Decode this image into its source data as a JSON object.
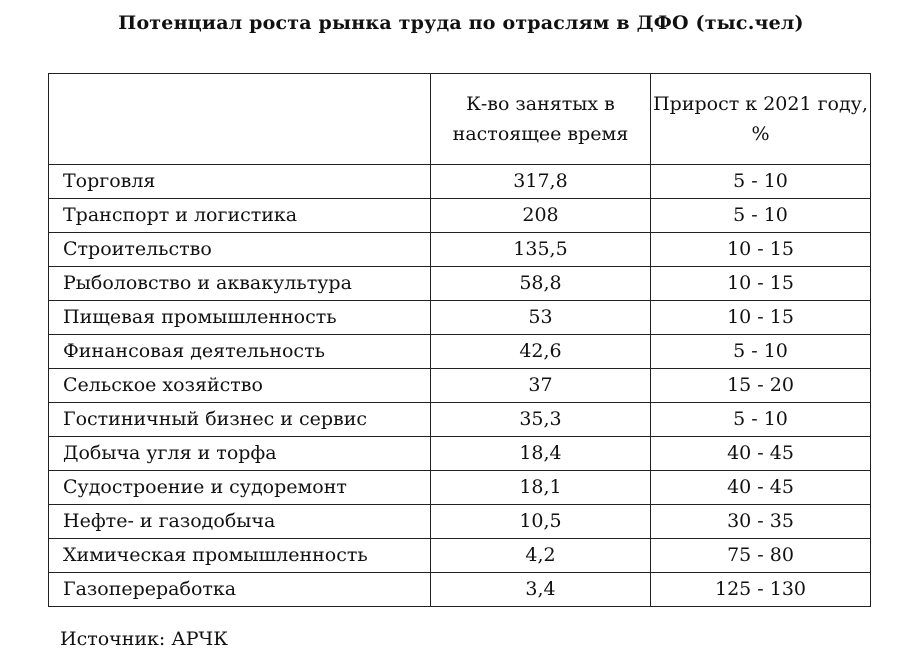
{
  "title": "Потенциал роста рынка труда по отраслям в ДФО (тыс.чел)",
  "table": {
    "headers": [
      "",
      "К-во занятых в настоящее время",
      "Прирост к 2021 году, %"
    ],
    "rows": [
      {
        "industry": "Торговля",
        "employed": "317,8",
        "growth": "5 - 10"
      },
      {
        "industry": "Транспорт и логистика",
        "employed": "208",
        "growth": "5 - 10"
      },
      {
        "industry": "Строительство",
        "employed": "135,5",
        "growth": "10 - 15"
      },
      {
        "industry": "Рыболовство и аквакультура",
        "employed": "58,8",
        "growth": "10 - 15"
      },
      {
        "industry": "Пищевая промышленность",
        "employed": "53",
        "growth": "10 - 15"
      },
      {
        "industry": "Финансовая деятельность",
        "employed": "42,6",
        "growth": "5 - 10"
      },
      {
        "industry": "Сельское хозяйство",
        "employed": "37",
        "growth": "15 - 20"
      },
      {
        "industry": "Гостиничный бизнес и сервис",
        "employed": "35,3",
        "growth": "5 - 10"
      },
      {
        "industry": "Добыча угля и торфа",
        "employed": "18,4",
        "growth": "40 - 45"
      },
      {
        "industry": "Судостроение и судоремонт",
        "employed": "18,1",
        "growth": "40 - 45"
      },
      {
        "industry": "Нефте- и газодобыча",
        "employed": "10,5",
        "growth": "30 - 35"
      },
      {
        "industry": "Химическая промышленность",
        "employed": "4,2",
        "growth": "75 - 80"
      },
      {
        "industry": "Газопереработка",
        "employed": "3,4",
        "growth": "125 - 130"
      }
    ]
  },
  "source": "Источник: АРЧК"
}
